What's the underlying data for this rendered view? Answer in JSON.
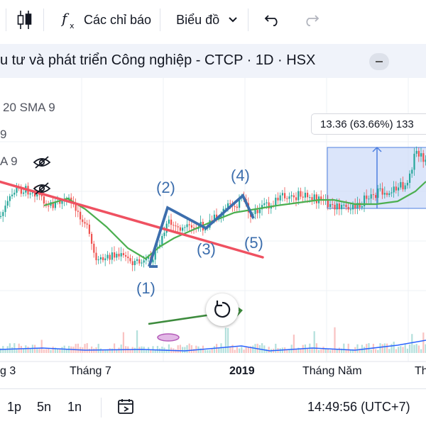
{
  "toolbar": {
    "indicators_label": "Các chỉ báo",
    "charts_label": "Biểu đồ"
  },
  "symbol": {
    "title": "u tư và phát triển Công nghiệp - CTCP · 1D · HSX"
  },
  "indicators": {
    "line1": "20 SMA 9",
    "line2": "9",
    "line3": "A 9"
  },
  "measure": {
    "label": "13.36 (63.66%) 133"
  },
  "annotations": [
    "(1)",
    "(2)",
    "(3)",
    "(4)",
    "(5)"
  ],
  "xaxis": {
    "labels": [
      "g 3",
      "Tháng 7",
      "2019",
      "Tháng Năm",
      "Th"
    ]
  },
  "bottom": {
    "ranges": [
      "1p",
      "5n",
      "1n"
    ],
    "clock": "14:49:56 (UTC+7)"
  }
}
